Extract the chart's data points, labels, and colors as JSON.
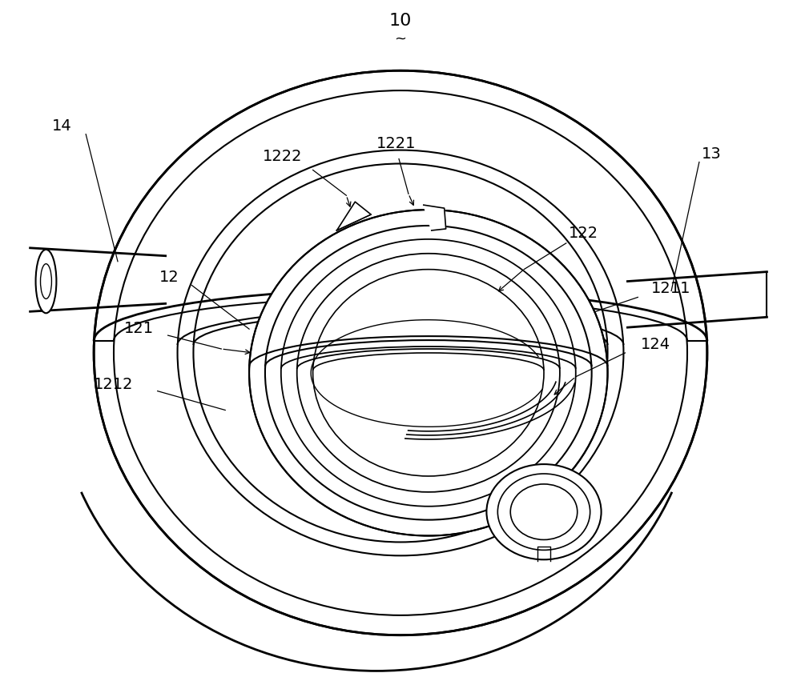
{
  "bg_color": "#ffffff",
  "line_color": "#000000",
  "lw": 1.5,
  "fig_width": 10.0,
  "fig_height": 8.71,
  "bx": 5.0,
  "by": 4.3,
  "label_fontsize": 14,
  "ref_fontsize": 16
}
